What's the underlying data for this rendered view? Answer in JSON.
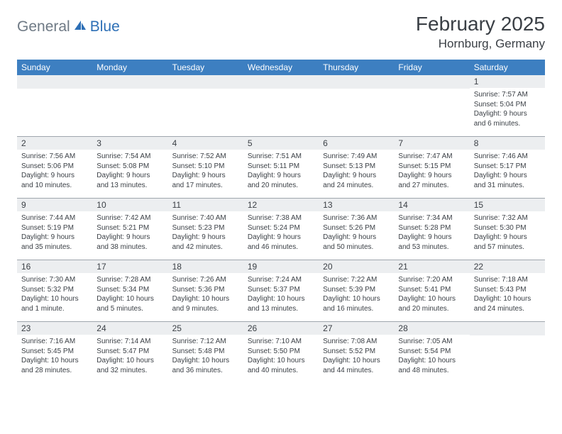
{
  "logo": {
    "text1": "General",
    "text2": "Blue"
  },
  "title": "February 2025",
  "location": "Hornburg, Germany",
  "weekday_header_bg": "#3d7fc1",
  "weekday_header_fg": "#ffffff",
  "daynum_bg": "#eceef0",
  "text_color": "#3a3f45",
  "divider_color": "#9fa6ad",
  "weekdays": [
    "Sunday",
    "Monday",
    "Tuesday",
    "Wednesday",
    "Thursday",
    "Friday",
    "Saturday"
  ],
  "weeks": [
    [
      {
        "day": "",
        "sunrise": "",
        "sunset": "",
        "daylight": ""
      },
      {
        "day": "",
        "sunrise": "",
        "sunset": "",
        "daylight": ""
      },
      {
        "day": "",
        "sunrise": "",
        "sunset": "",
        "daylight": ""
      },
      {
        "day": "",
        "sunrise": "",
        "sunset": "",
        "daylight": ""
      },
      {
        "day": "",
        "sunrise": "",
        "sunset": "",
        "daylight": ""
      },
      {
        "day": "",
        "sunrise": "",
        "sunset": "",
        "daylight": ""
      },
      {
        "day": "1",
        "sunrise": "Sunrise: 7:57 AM",
        "sunset": "Sunset: 5:04 PM",
        "daylight": "Daylight: 9 hours and 6 minutes."
      }
    ],
    [
      {
        "day": "2",
        "sunrise": "Sunrise: 7:56 AM",
        "sunset": "Sunset: 5:06 PM",
        "daylight": "Daylight: 9 hours and 10 minutes."
      },
      {
        "day": "3",
        "sunrise": "Sunrise: 7:54 AM",
        "sunset": "Sunset: 5:08 PM",
        "daylight": "Daylight: 9 hours and 13 minutes."
      },
      {
        "day": "4",
        "sunrise": "Sunrise: 7:52 AM",
        "sunset": "Sunset: 5:10 PM",
        "daylight": "Daylight: 9 hours and 17 minutes."
      },
      {
        "day": "5",
        "sunrise": "Sunrise: 7:51 AM",
        "sunset": "Sunset: 5:11 PM",
        "daylight": "Daylight: 9 hours and 20 minutes."
      },
      {
        "day": "6",
        "sunrise": "Sunrise: 7:49 AM",
        "sunset": "Sunset: 5:13 PM",
        "daylight": "Daylight: 9 hours and 24 minutes."
      },
      {
        "day": "7",
        "sunrise": "Sunrise: 7:47 AM",
        "sunset": "Sunset: 5:15 PM",
        "daylight": "Daylight: 9 hours and 27 minutes."
      },
      {
        "day": "8",
        "sunrise": "Sunrise: 7:46 AM",
        "sunset": "Sunset: 5:17 PM",
        "daylight": "Daylight: 9 hours and 31 minutes."
      }
    ],
    [
      {
        "day": "9",
        "sunrise": "Sunrise: 7:44 AM",
        "sunset": "Sunset: 5:19 PM",
        "daylight": "Daylight: 9 hours and 35 minutes."
      },
      {
        "day": "10",
        "sunrise": "Sunrise: 7:42 AM",
        "sunset": "Sunset: 5:21 PM",
        "daylight": "Daylight: 9 hours and 38 minutes."
      },
      {
        "day": "11",
        "sunrise": "Sunrise: 7:40 AM",
        "sunset": "Sunset: 5:23 PM",
        "daylight": "Daylight: 9 hours and 42 minutes."
      },
      {
        "day": "12",
        "sunrise": "Sunrise: 7:38 AM",
        "sunset": "Sunset: 5:24 PM",
        "daylight": "Daylight: 9 hours and 46 minutes."
      },
      {
        "day": "13",
        "sunrise": "Sunrise: 7:36 AM",
        "sunset": "Sunset: 5:26 PM",
        "daylight": "Daylight: 9 hours and 50 minutes."
      },
      {
        "day": "14",
        "sunrise": "Sunrise: 7:34 AM",
        "sunset": "Sunset: 5:28 PM",
        "daylight": "Daylight: 9 hours and 53 minutes."
      },
      {
        "day": "15",
        "sunrise": "Sunrise: 7:32 AM",
        "sunset": "Sunset: 5:30 PM",
        "daylight": "Daylight: 9 hours and 57 minutes."
      }
    ],
    [
      {
        "day": "16",
        "sunrise": "Sunrise: 7:30 AM",
        "sunset": "Sunset: 5:32 PM",
        "daylight": "Daylight: 10 hours and 1 minute."
      },
      {
        "day": "17",
        "sunrise": "Sunrise: 7:28 AM",
        "sunset": "Sunset: 5:34 PM",
        "daylight": "Daylight: 10 hours and 5 minutes."
      },
      {
        "day": "18",
        "sunrise": "Sunrise: 7:26 AM",
        "sunset": "Sunset: 5:36 PM",
        "daylight": "Daylight: 10 hours and 9 minutes."
      },
      {
        "day": "19",
        "sunrise": "Sunrise: 7:24 AM",
        "sunset": "Sunset: 5:37 PM",
        "daylight": "Daylight: 10 hours and 13 minutes."
      },
      {
        "day": "20",
        "sunrise": "Sunrise: 7:22 AM",
        "sunset": "Sunset: 5:39 PM",
        "daylight": "Daylight: 10 hours and 16 minutes."
      },
      {
        "day": "21",
        "sunrise": "Sunrise: 7:20 AM",
        "sunset": "Sunset: 5:41 PM",
        "daylight": "Daylight: 10 hours and 20 minutes."
      },
      {
        "day": "22",
        "sunrise": "Sunrise: 7:18 AM",
        "sunset": "Sunset: 5:43 PM",
        "daylight": "Daylight: 10 hours and 24 minutes."
      }
    ],
    [
      {
        "day": "23",
        "sunrise": "Sunrise: 7:16 AM",
        "sunset": "Sunset: 5:45 PM",
        "daylight": "Daylight: 10 hours and 28 minutes."
      },
      {
        "day": "24",
        "sunrise": "Sunrise: 7:14 AM",
        "sunset": "Sunset: 5:47 PM",
        "daylight": "Daylight: 10 hours and 32 minutes."
      },
      {
        "day": "25",
        "sunrise": "Sunrise: 7:12 AM",
        "sunset": "Sunset: 5:48 PM",
        "daylight": "Daylight: 10 hours and 36 minutes."
      },
      {
        "day": "26",
        "sunrise": "Sunrise: 7:10 AM",
        "sunset": "Sunset: 5:50 PM",
        "daylight": "Daylight: 10 hours and 40 minutes."
      },
      {
        "day": "27",
        "sunrise": "Sunrise: 7:08 AM",
        "sunset": "Sunset: 5:52 PM",
        "daylight": "Daylight: 10 hours and 44 minutes."
      },
      {
        "day": "28",
        "sunrise": "Sunrise: 7:05 AM",
        "sunset": "Sunset: 5:54 PM",
        "daylight": "Daylight: 10 hours and 48 minutes."
      },
      {
        "day": "",
        "sunrise": "",
        "sunset": "",
        "daylight": ""
      }
    ]
  ]
}
